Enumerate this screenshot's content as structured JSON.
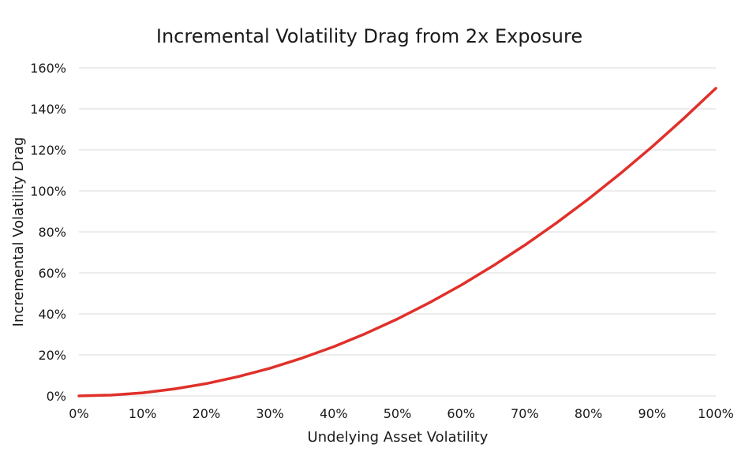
{
  "chart_data": {
    "type": "line",
    "title": "Incremental Volatility Drag from 2x Exposure",
    "xlabel": "Undelying Asset Volatility",
    "ylabel": "Incremental Volatility Drag",
    "xlim": [
      0,
      1
    ],
    "ylim": [
      0,
      1.6
    ],
    "x_ticks": [
      "0%",
      "10%",
      "20%",
      "30%",
      "40%",
      "50%",
      "60%",
      "70%",
      "80%",
      "90%",
      "100%"
    ],
    "y_ticks": [
      "0%",
      "20%",
      "40%",
      "60%",
      "80%",
      "100%",
      "120%",
      "140%",
      "160%"
    ],
    "grid": true,
    "legend": "none",
    "colors": {
      "series": "#e0302a",
      "grid": "#d9d9d9",
      "text": "#1a1a1a"
    },
    "series": [
      {
        "x": [
          0,
          0.05,
          0.1,
          0.15,
          0.2,
          0.25,
          0.3,
          0.35,
          0.4,
          0.45,
          0.5,
          0.55,
          0.6,
          0.65,
          0.7,
          0.75,
          0.8,
          0.85,
          0.9,
          0.95,
          1.0
        ],
        "values": [
          0,
          0.004,
          0.015,
          0.034,
          0.06,
          0.094,
          0.135,
          0.184,
          0.24,
          0.304,
          0.375,
          0.454,
          0.54,
          0.634,
          0.735,
          0.844,
          0.96,
          1.084,
          1.215,
          1.354,
          1.5
        ]
      }
    ]
  }
}
